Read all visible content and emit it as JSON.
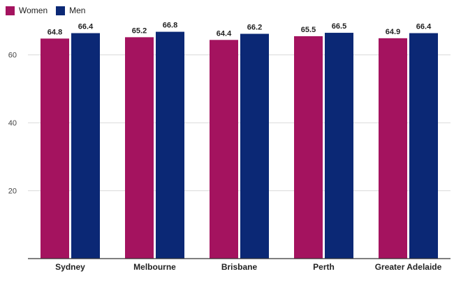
{
  "chart_data": {
    "type": "bar",
    "title": "",
    "xlabel": "",
    "ylabel": "",
    "categories": [
      "Sydney",
      "Melbourne",
      "Brisbane",
      "Perth",
      "Greater Adelaide"
    ],
    "series": [
      {
        "name": "Women",
        "color": "#a4135f",
        "values": [
          64.8,
          65.2,
          64.4,
          65.5,
          64.9
        ]
      },
      {
        "name": "Men",
        "color": "#0b2875",
        "values": [
          66.4,
          66.8,
          66.2,
          66.5,
          66.4
        ]
      }
    ],
    "ylim": [
      0,
      70
    ],
    "yticks": [
      20,
      40,
      60
    ],
    "grid": true,
    "legend": "top-left",
    "data_labels": true
  }
}
